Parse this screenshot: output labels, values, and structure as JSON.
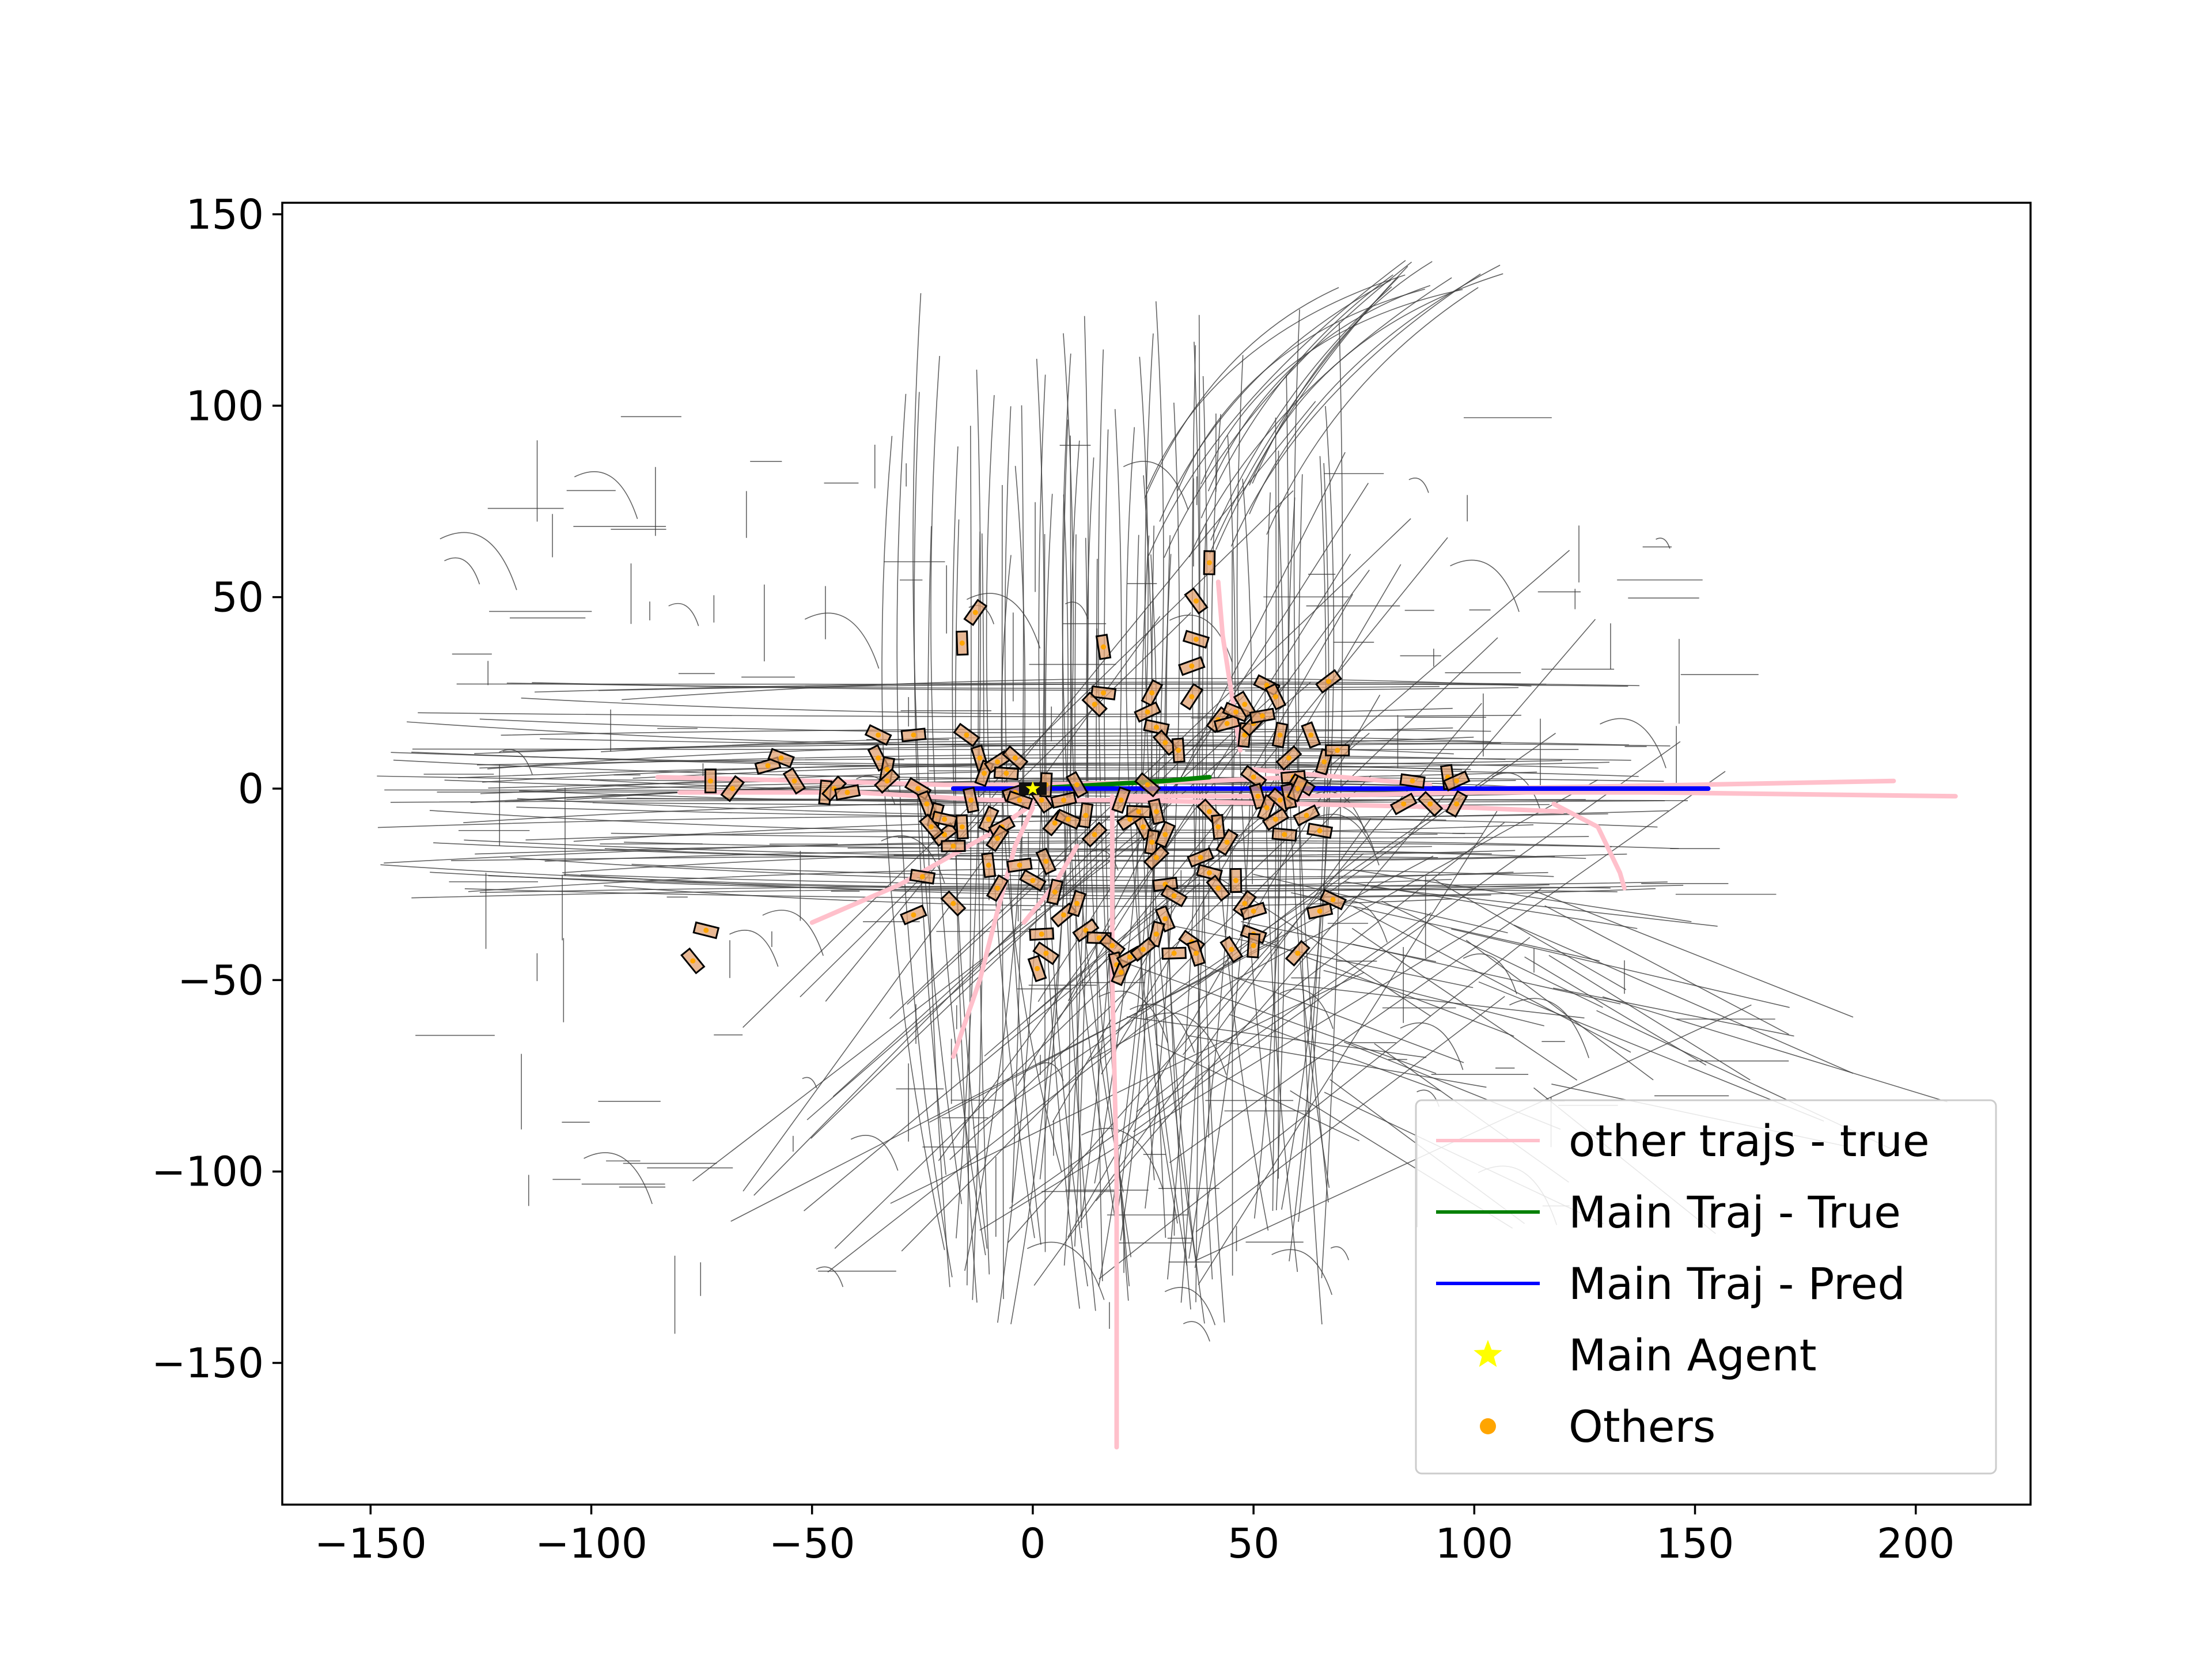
{
  "chart_data": {
    "type": "scatter",
    "title": "",
    "xlabel": "",
    "ylabel": "",
    "xlim": [
      -170,
      226
    ],
    "ylim": [
      -187,
      153
    ],
    "xticks": [
      -150,
      -100,
      -50,
      0,
      50,
      100,
      150,
      200
    ],
    "yticks": [
      -150,
      -100,
      -50,
      0,
      50,
      100,
      150
    ],
    "xtick_labels": [
      "−150",
      "−100",
      "−50",
      "0",
      "50",
      "100",
      "150",
      "200"
    ],
    "ytick_labels": [
      "−150",
      "−100",
      "−50",
      "0",
      "50",
      "100",
      "150"
    ],
    "grid": false,
    "legend": {
      "placement": "lower right",
      "entries": [
        {
          "label": "other trajs - true",
          "color": "#ffc0cb",
          "marker": "line"
        },
        {
          "label": "Main Traj - True",
          "color": "#008000",
          "marker": "line"
        },
        {
          "label": "Main Traj - Pred",
          "color": "#0000ff",
          "marker": "line"
        },
        {
          "label": "Main Agent",
          "color": "#ffff00",
          "marker": "star"
        },
        {
          "label": "Others",
          "color": "#ffa500",
          "marker": "circle"
        }
      ]
    },
    "series": [
      {
        "name": "other trajs - true",
        "color": "#ffc0cb",
        "lines": [
          [
            [
              -85,
              3
            ],
            [
              -50,
              2
            ],
            [
              -20,
              1
            ],
            [
              0,
              1
            ],
            [
              40,
              2
            ],
            [
              60,
              3
            ]
          ],
          [
            [
              -80,
              -1
            ],
            [
              -40,
              -1
            ],
            [
              -10,
              -3
            ],
            [
              20,
              -3
            ],
            [
              60,
              -4
            ],
            [
              100,
              -5
            ],
            [
              120,
              -6
            ]
          ],
          [
            [
              20,
              -2
            ],
            [
              60,
              -2
            ],
            [
              100,
              -1
            ],
            [
              140,
              -1
            ],
            [
              209,
              -2
            ]
          ],
          [
            [
              100,
              0
            ],
            [
              150,
              1
            ],
            [
              195,
              2
            ]
          ],
          [
            [
              118,
              -4
            ],
            [
              128,
              -10
            ],
            [
              133,
              -22
            ],
            [
              134,
              -26
            ]
          ],
          [
            [
              -50,
              -35
            ],
            [
              -30,
              -25
            ],
            [
              -10,
              -12
            ],
            [
              0,
              -4
            ]
          ],
          [
            [
              -18,
              -70
            ],
            [
              -12,
              -50
            ],
            [
              -8,
              -32
            ],
            [
              -4,
              -15
            ],
            [
              0,
              -5
            ]
          ],
          [
            [
              18,
              -2
            ],
            [
              18,
              -50
            ],
            [
              19,
              -100
            ],
            [
              19,
              -172
            ]
          ],
          [
            [
              10,
              -15
            ],
            [
              5,
              -25
            ],
            [
              -2,
              -35
            ]
          ],
          [
            [
              42,
              54
            ],
            [
              43,
              40
            ],
            [
              45,
              25
            ],
            [
              47,
              10
            ]
          ],
          [
            [
              50,
              5
            ],
            [
              70,
              3
            ],
            [
              90,
              1
            ]
          ]
        ]
      },
      {
        "name": "Main Traj - True",
        "color": "#008000",
        "lines": [
          [
            [
              0,
              0
            ],
            [
              15,
              1
            ],
            [
              30,
              2
            ],
            [
              40,
              3
            ]
          ]
        ]
      },
      {
        "name": "Main Traj - Pred",
        "color": "#0000ff",
        "lines": [
          [
            [
              -18,
              0
            ],
            [
              0,
              0
            ],
            [
              50,
              0
            ],
            [
              100,
              0
            ],
            [
              153,
              0
            ]
          ]
        ]
      },
      {
        "name": "Main Agent",
        "color": "#ffff00",
        "points": [
          [
            0,
            0
          ]
        ]
      },
      {
        "name": "Others",
        "color": "#ffa500",
        "points": [
          [
            -73,
            2
          ],
          [
            -68,
            0
          ],
          [
            -60,
            6
          ],
          [
            -57,
            8
          ],
          [
            -54,
            2
          ],
          [
            -47,
            -1
          ],
          [
            -45,
            0
          ],
          [
            -42,
            -1
          ],
          [
            -35,
            14
          ],
          [
            -35,
            8
          ],
          [
            -33,
            5
          ],
          [
            -33,
            2
          ],
          [
            -27,
            14
          ],
          [
            -26,
            0
          ],
          [
            -24,
            -4
          ],
          [
            -22,
            -7
          ],
          [
            -20,
            -12
          ],
          [
            -18,
            -15
          ],
          [
            -15,
            14
          ],
          [
            -12,
            8
          ],
          [
            -11,
            4
          ],
          [
            -8,
            7
          ],
          [
            -6,
            4
          ],
          [
            -4,
            8
          ],
          [
            -14,
            -3
          ],
          [
            -10,
            -8
          ],
          [
            -7,
            -10
          ],
          [
            -25,
            -23
          ],
          [
            -18,
            -30
          ],
          [
            -10,
            -20
          ],
          [
            -8,
            -26
          ],
          [
            -27,
            -33
          ],
          [
            -74,
            -37
          ],
          [
            -77,
            -45
          ],
          [
            -16,
            38
          ],
          [
            -13,
            46
          ],
          [
            -4,
            -1
          ],
          [
            -3,
            -3
          ],
          [
            2,
            -3
          ],
          [
            3,
            1
          ],
          [
            5,
            -9
          ],
          [
            7,
            -3
          ],
          [
            8,
            -8
          ],
          [
            10,
            1
          ],
          [
            12,
            -7
          ],
          [
            14,
            -12
          ],
          [
            -3,
            -20
          ],
          [
            0,
            -24
          ],
          [
            3,
            -19
          ],
          [
            5,
            -27
          ],
          [
            7,
            -33
          ],
          [
            2,
            -38
          ],
          [
            3,
            -43
          ],
          [
            1,
            -47
          ],
          [
            10,
            -30
          ],
          [
            12,
            -37
          ],
          [
            15,
            -39
          ],
          [
            18,
            -41
          ],
          [
            19,
            -46
          ],
          [
            20,
            -48
          ],
          [
            22,
            -44
          ],
          [
            16,
            25
          ],
          [
            14,
            22
          ],
          [
            16,
            37
          ],
          [
            27,
            25
          ],
          [
            26,
            20
          ],
          [
            28,
            16
          ],
          [
            30,
            12
          ],
          [
            33,
            10
          ],
          [
            36,
            24
          ],
          [
            36,
            32
          ],
          [
            37,
            39
          ],
          [
            37,
            49
          ],
          [
            40,
            59
          ],
          [
            42,
            18
          ],
          [
            44,
            17
          ],
          [
            46,
            20
          ],
          [
            48,
            22
          ],
          [
            48,
            14
          ],
          [
            50,
            17
          ],
          [
            52,
            19
          ],
          [
            53,
            27
          ],
          [
            55,
            24
          ],
          [
            56,
            14
          ],
          [
            58,
            8
          ],
          [
            59,
            3
          ],
          [
            61,
            1
          ],
          [
            63,
            14
          ],
          [
            66,
            7
          ],
          [
            67,
            28
          ],
          [
            69,
            10
          ],
          [
            50,
            3
          ],
          [
            51,
            -2
          ],
          [
            53,
            -5
          ],
          [
            55,
            -8
          ],
          [
            57,
            -12
          ],
          [
            56,
            -3
          ],
          [
            58,
            -2
          ],
          [
            60,
            0
          ],
          [
            62,
            -7
          ],
          [
            65,
            -11
          ],
          [
            40,
            -6
          ],
          [
            42,
            -10
          ],
          [
            44,
            -14
          ],
          [
            38,
            -18
          ],
          [
            40,
            -22
          ],
          [
            42,
            -26
          ],
          [
            46,
            -24
          ],
          [
            48,
            -30
          ],
          [
            50,
            -32
          ],
          [
            50,
            -38
          ],
          [
            45,
            -42
          ],
          [
            50,
            -41
          ],
          [
            60,
            -43
          ],
          [
            65,
            -32
          ],
          [
            68,
            -29
          ],
          [
            25,
            -10
          ],
          [
            27,
            -14
          ],
          [
            28,
            -18
          ],
          [
            30,
            -25
          ],
          [
            32,
            -28
          ],
          [
            30,
            -34
          ],
          [
            28,
            -38
          ],
          [
            25,
            -42
          ],
          [
            32,
            -43
          ],
          [
            36,
            -40
          ],
          [
            37,
            -43
          ],
          [
            20,
            -3
          ],
          [
            22,
            -8
          ],
          [
            24,
            -6
          ],
          [
            26,
            1
          ],
          [
            28,
            -6
          ],
          [
            30,
            -12
          ],
          [
            84,
            -4
          ],
          [
            86,
            2
          ],
          [
            90,
            -4
          ],
          [
            94,
            3
          ],
          [
            96,
            -4
          ],
          [
            96,
            2
          ],
          [
            -20,
            -8
          ],
          [
            -23,
            -10
          ],
          [
            -16,
            -10
          ],
          [
            -8,
            -13
          ]
        ]
      }
    ]
  }
}
